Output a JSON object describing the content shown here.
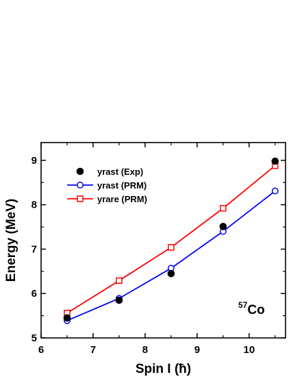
{
  "chart_data": {
    "type": "line",
    "xlabel": "Spin I (ħ)",
    "ylabel": "Energy (MeV)",
    "xlim": [
      6,
      10.7
    ],
    "ylim": [
      5,
      9.4
    ],
    "x_ticks": [
      6,
      7,
      8,
      9,
      10
    ],
    "y_ticks": [
      5,
      6,
      7,
      8,
      9
    ],
    "legend_position": "top-left",
    "annotation": {
      "superscript": "57",
      "text": "Co"
    },
    "series": [
      {
        "name": "yrast (Exp)",
        "style": "markers",
        "marker": "filled-circle",
        "color": "#000000",
        "x": [
          6.5,
          7.5,
          8.5,
          9.5,
          10.5
        ],
        "y": [
          5.45,
          5.85,
          6.45,
          7.51,
          8.98
        ]
      },
      {
        "name": "yrast (PRM)",
        "style": "line-markers",
        "marker": "open-circle",
        "color": "#0000ff",
        "x": [
          6.5,
          7.5,
          8.5,
          9.5,
          10.5
        ],
        "y": [
          5.39,
          5.89,
          6.57,
          7.4,
          8.31
        ]
      },
      {
        "name": "yrare (PRM)",
        "style": "line-markers",
        "marker": "open-square",
        "color": "#ff0000",
        "x": [
          6.5,
          7.5,
          8.5,
          9.5,
          10.5
        ],
        "y": [
          5.56,
          6.29,
          7.04,
          7.92,
          8.88
        ]
      }
    ]
  }
}
